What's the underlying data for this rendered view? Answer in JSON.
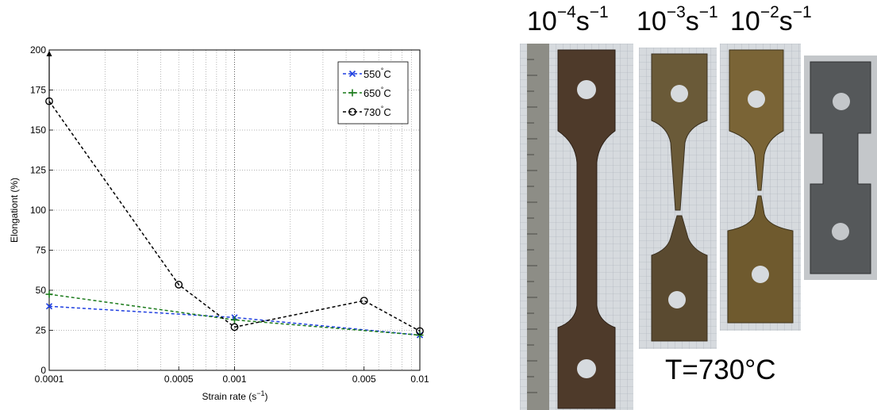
{
  "chart_data": {
    "type": "line",
    "xlabel": "Strain rate (s",
    "xlabel_sup": "−1",
    "xlabel_tail": ")",
    "ylabel": "Elongationt (%)",
    "x_ticks": [
      "0.0001",
      "0.0005",
      "0.001",
      "0.005",
      "0.01"
    ],
    "x_tick_values": [
      0.0001,
      0.0005,
      0.001,
      0.005,
      0.01
    ],
    "x_scale": "log",
    "y_ticks": [
      "0",
      "25",
      "50",
      "75",
      "100",
      "125",
      "150",
      "175",
      "200"
    ],
    "ylim": [
      0,
      200
    ],
    "xlim": [
      0.0001,
      0.01
    ],
    "grid": true,
    "legend_position": "top-right",
    "arrow_note": "upward arrow above 0.0001 point of 730°C series",
    "series": [
      {
        "name": "550",
        "name_sup": "°",
        "name_tail": "C",
        "color": "#1f3fe0",
        "marker": "x",
        "x": [
          0.0001,
          0.001,
          0.01
        ],
        "y": [
          40,
          33,
          22
        ]
      },
      {
        "name": "650",
        "name_sup": "°",
        "name_tail": "C",
        "color": "#1a7a1a",
        "marker": "+",
        "x": [
          0.0001,
          0.001,
          0.01
        ],
        "y": [
          47.5,
          31.5,
          22
        ]
      },
      {
        "name": "730",
        "name_sup": "°",
        "name_tail": "C",
        "color": "#000000",
        "marker": "o",
        "x": [
          0.0001,
          0.0005,
          0.001,
          0.005,
          0.01
        ],
        "y": [
          168,
          53.5,
          27,
          43.5,
          24.5
        ]
      }
    ]
  },
  "photo_panel": {
    "labels": [
      {
        "base": "10",
        "exp": "−4",
        "unit": "s",
        "unit_exp": "−1"
      },
      {
        "base": "10",
        "exp": "−3",
        "unit": "s",
        "unit_exp": "−1"
      },
      {
        "base": "10",
        "exp": "−2",
        "unit": "s",
        "unit_exp": "−1"
      }
    ],
    "temperature": "T=730°C"
  }
}
